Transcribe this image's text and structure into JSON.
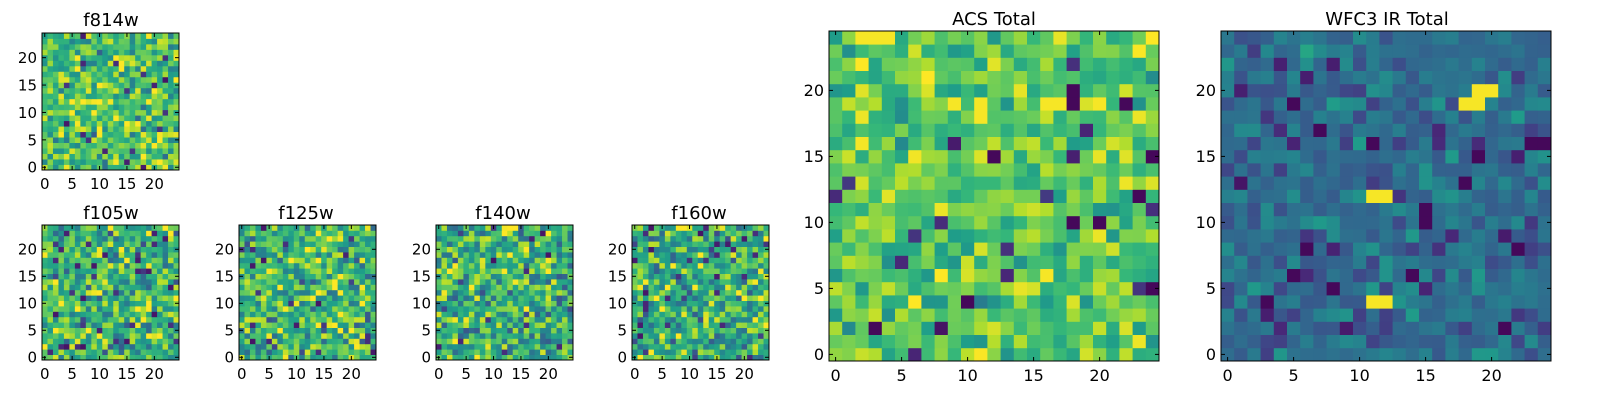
{
  "figure": {
    "panels": [
      {
        "title": "f814w",
        "xticks": [
          "0",
          "5",
          "10",
          "15",
          "20"
        ],
        "yticks": [
          "0",
          "5",
          "10",
          "15",
          "20"
        ]
      },
      {
        "title": "f105w",
        "xticks": [
          "0",
          "5",
          "10",
          "15",
          "20"
        ],
        "yticks": [
          "0",
          "5",
          "10",
          "15",
          "20"
        ]
      },
      {
        "title": "f125w",
        "xticks": [
          "0",
          "5",
          "10",
          "15",
          "20"
        ],
        "yticks": [
          "0",
          "5",
          "10",
          "15",
          "20"
        ]
      },
      {
        "title": "f140w",
        "xticks": [
          "0",
          "5",
          "10",
          "15",
          "20"
        ],
        "yticks": [
          "0",
          "5",
          "10",
          "15",
          "20"
        ]
      },
      {
        "title": "f160w",
        "xticks": [
          "0",
          "5",
          "10",
          "15",
          "20"
        ],
        "yticks": [
          "0",
          "5",
          "10",
          "15",
          "20"
        ]
      },
      {
        "title": "ACS Total",
        "xticks": [
          "0",
          "5",
          "10",
          "15",
          "20"
        ],
        "yticks": [
          "0",
          "5",
          "10",
          "15",
          "20"
        ]
      },
      {
        "title": "WFC3 IR Total",
        "xticks": [
          "0",
          "5",
          "10",
          "15",
          "20"
        ],
        "yticks": [
          "0",
          "5",
          "10",
          "15",
          "20"
        ]
      }
    ]
  },
  "chart_data": [
    {
      "type": "heatmap",
      "title": "f814w",
      "grid_size": [
        25,
        25
      ],
      "xlim": [
        -0.5,
        24.5
      ],
      "ylim": [
        -0.5,
        24.5
      ],
      "colormap": "viridis",
      "origin": "lower",
      "values_estimated": "noise field, mostly high values with scattered low pixels",
      "mean_level": 0.72,
      "spread": 0.22
    },
    {
      "type": "heatmap",
      "title": "f105w",
      "grid_size": [
        25,
        25
      ],
      "xlim": [
        -0.5,
        24.5
      ],
      "ylim": [
        -0.5,
        24.5
      ],
      "colormap": "viridis",
      "origin": "lower",
      "mean_level": 0.66,
      "spread": 0.26
    },
    {
      "type": "heatmap",
      "title": "f125w",
      "grid_size": [
        25,
        25
      ],
      "xlim": [
        -0.5,
        24.5
      ],
      "ylim": [
        -0.5,
        24.5
      ],
      "colormap": "viridis",
      "origin": "lower",
      "mean_level": 0.66,
      "spread": 0.26
    },
    {
      "type": "heatmap",
      "title": "f140w",
      "grid_size": [
        25,
        25
      ],
      "xlim": [
        -0.5,
        24.5
      ],
      "ylim": [
        -0.5,
        24.5
      ],
      "colormap": "viridis",
      "origin": "lower",
      "mean_level": 0.64,
      "spread": 0.27
    },
    {
      "type": "heatmap",
      "title": "f160w",
      "grid_size": [
        25,
        25
      ],
      "xlim": [
        -0.5,
        24.5
      ],
      "ylim": [
        -0.5,
        24.5
      ],
      "colormap": "viridis",
      "origin": "lower",
      "mean_level": 0.64,
      "spread": 0.27
    },
    {
      "type": "heatmap",
      "title": "ACS Total",
      "grid_size": [
        25,
        25
      ],
      "xlim": [
        -0.5,
        24.5
      ],
      "ylim": [
        -0.5,
        24.5
      ],
      "colormap": "viridis",
      "origin": "lower",
      "mean_level": 0.74,
      "spread": 0.16,
      "dark_pixels": [
        [
          18,
          20
        ],
        [
          18,
          19
        ],
        [
          22,
          19
        ],
        [
          12,
          15
        ],
        [
          24,
          15
        ],
        [
          18,
          10
        ],
        [
          23,
          12
        ],
        [
          24,
          5
        ],
        [
          3,
          2
        ],
        [
          10,
          4
        ],
        [
          20,
          10
        ]
      ],
      "bright_pixels": [
        [
          3,
          24
        ],
        [
          4,
          24
        ],
        [
          2,
          24
        ],
        [
          9,
          19
        ],
        [
          11,
          19
        ],
        [
          11,
          18
        ],
        [
          16,
          19
        ],
        [
          17,
          19
        ],
        [
          20,
          19
        ],
        [
          16,
          6
        ]
      ]
    },
    {
      "type": "heatmap",
      "title": "WFC3 IR Total",
      "grid_size": [
        25,
        25
      ],
      "xlim": [
        -0.5,
        24.5
      ],
      "ylim": [
        -0.5,
        24.5
      ],
      "colormap": "viridis",
      "origin": "lower",
      "mean_level": 0.36,
      "spread": 0.12,
      "dark_pixels": [
        [
          5,
          19
        ],
        [
          7,
          17
        ],
        [
          23,
          16
        ],
        [
          24,
          16
        ],
        [
          19,
          15
        ],
        [
          11,
          16
        ],
        [
          15,
          11
        ],
        [
          15,
          10
        ],
        [
          18,
          13
        ],
        [
          6,
          8
        ],
        [
          22,
          8
        ],
        [
          5,
          6
        ],
        [
          14,
          6
        ],
        [
          21,
          2
        ],
        [
          8,
          5
        ],
        [
          3,
          4
        ]
      ],
      "bright_pixels": [
        [
          18,
          19
        ],
        [
          19,
          19
        ],
        [
          19,
          20
        ],
        [
          20,
          20
        ],
        [
          11,
          12
        ],
        [
          12,
          12
        ],
        [
          11,
          4
        ],
        [
          12,
          4
        ]
      ]
    }
  ]
}
